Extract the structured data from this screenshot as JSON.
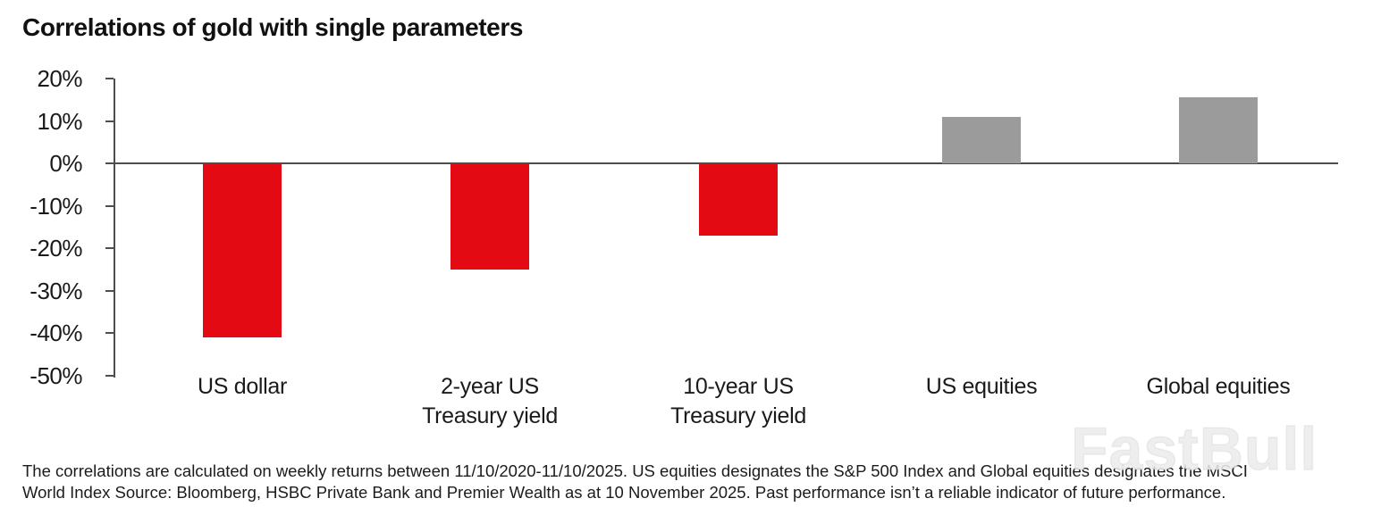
{
  "title": "Correlations of gold with single parameters",
  "watermark": "FastBull",
  "chart_data": {
    "type": "bar",
    "title": "Correlations of gold with single parameters",
    "categories": [
      "US dollar",
      "2-year US\nTreasury yield",
      "10-year US\nTreasury yield",
      "US equities",
      "Global equities"
    ],
    "values": [
      -41,
      -25,
      -17,
      11,
      15.5
    ],
    "unit": "%",
    "ylabel": "",
    "xlabel": "",
    "ylim": [
      -50,
      20
    ],
    "ytick_step": 10,
    "ytick_labels": [
      "20%",
      "10%",
      "0%",
      "-10%",
      "-20%",
      "-30%",
      "-40%",
      "-50%"
    ],
    "grid": false,
    "legend_position": "none",
    "colors": {
      "negative_bar": "#e30a13",
      "positive_bar": "#9b9b9b",
      "axis": "#4d4d4d"
    }
  },
  "footnote": {
    "line1": "The correlations are calculated on weekly returns between 11/10/2020-11/10/2025. US equities designates the S&P 500 Index and Global equities designates the MSCI",
    "line2": "World Index Source: Bloomberg, HSBC Private Bank and Premier Wealth as at 10 November 2025. Past performance isn’t a reliable indicator of future performance."
  }
}
